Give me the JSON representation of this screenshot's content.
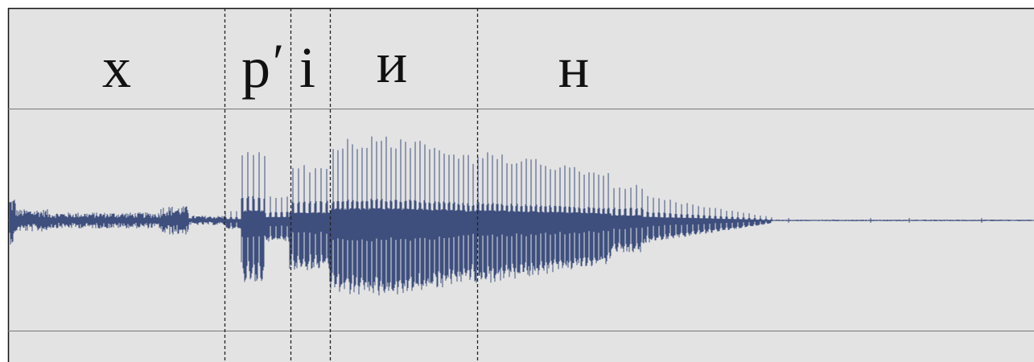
{
  "segments": [
    {
      "label": "х"
    },
    {
      "label": "р"
    },
    {
      "label": "і"
    },
    {
      "label": "и"
    },
    {
      "label": "н"
    }
  ],
  "palenalization_mark": "ʹ",
  "colors": {
    "panel_background": "#e3e3e3",
    "frame": "#111111",
    "tier_lines": "#777777",
    "waveform": "#3e4f7e",
    "boundary": "#222222"
  }
}
